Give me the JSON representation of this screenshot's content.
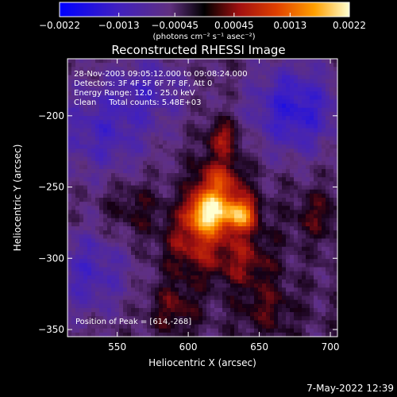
{
  "chart_data": {
    "type": "heatmap",
    "title": "Reconstructed RHESSI Image",
    "xlabel": "Heliocentric X (arcsec)",
    "ylabel": "Heliocentric Y (arcsec)",
    "xlim": [
      515,
      705
    ],
    "ylim": [
      -355,
      -160
    ],
    "x_ticks": [
      550,
      600,
      650,
      700
    ],
    "x_tick_labels": [
      "550",
      "600",
      "650",
      "700"
    ],
    "y_ticks": [
      -200,
      -250,
      -300,
      -350
    ],
    "y_tick_labels": [
      "−200",
      "−250",
      "−300",
      "−350"
    ],
    "colorbar": {
      "range": [
        -0.0022,
        0.0022
      ],
      "tick_values": [
        -0.0022,
        -0.0013,
        -0.00045,
        0.00045,
        0.0013,
        0.0022
      ],
      "tick_labels": [
        "−0.0022",
        "−0.0013",
        "−0.00045",
        "0.00045",
        "0.0013",
        "0.0022"
      ],
      "units_label": "(photons cm⁻² s⁻¹ asec⁻²)"
    },
    "info_lines": [
      "28-Nov-2003 09:05:12.000 to 09:08:24.000",
      "Detectors: 3F 4F 5F 6F 7F 8F, Att 0",
      "Energy Range: 12.0 - 25.0 keV",
      "Clean     Total counts: 5.48E+03"
    ],
    "peak_label": "Position of Peak = [614,-268]",
    "peak": [
      614,
      -268
    ],
    "sources": [
      {
        "x": 614,
        "y": -268,
        "sigma": 10,
        "amp": 0.0022
      },
      {
        "x": 637,
        "y": -269,
        "sigma": 8,
        "amp": 0.0019
      },
      {
        "x": 622,
        "y": -246,
        "sigma": 12,
        "amp": 0.0012
      },
      {
        "x": 605,
        "y": -290,
        "sigma": 16,
        "amp": 0.0009
      },
      {
        "x": 640,
        "y": -300,
        "sigma": 14,
        "amp": 0.0007
      },
      {
        "x": 625,
        "y": -215,
        "sigma": 8,
        "amp": 0.0009
      },
      {
        "x": 560,
        "y": -265,
        "sigma": 14,
        "amp": 0.00045
      },
      {
        "x": 590,
        "y": -335,
        "sigma": 12,
        "amp": 0.0006
      },
      {
        "x": 655,
        "y": -335,
        "sigma": 14,
        "amp": 0.0005
      },
      {
        "x": 690,
        "y": -270,
        "sigma": 12,
        "amp": 0.0005
      }
    ],
    "negative_regions": [
      {
        "x": 675,
        "y": -195,
        "sigma": 22,
        "amp": -0.0012
      },
      {
        "x": 540,
        "y": -210,
        "sigma": 25,
        "amp": -0.0008
      },
      {
        "x": 530,
        "y": -310,
        "sigma": 22,
        "amp": -0.0008
      },
      {
        "x": 575,
        "y": -180,
        "sigma": 18,
        "amp": -0.0006
      }
    ]
  },
  "footer": {
    "timestamp": "7-May-2022 12:39"
  }
}
